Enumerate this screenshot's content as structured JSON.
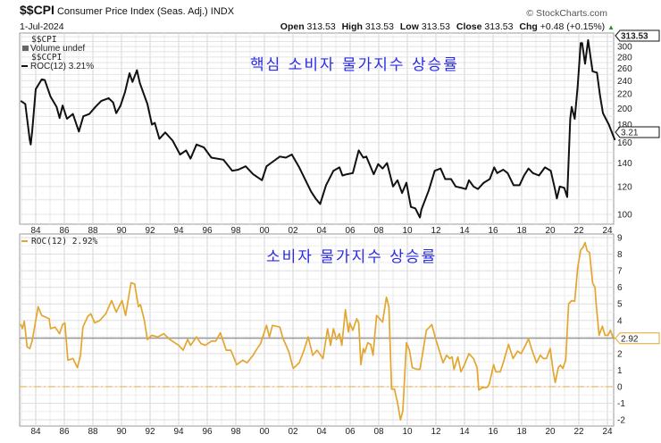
{
  "header": {
    "symbol": "$$CPI",
    "name": "Consumer Price Index (Seas. Adj.)",
    "exchange": "INDX",
    "date": "1-Jul-2024",
    "watermark": "© StockCharts.com",
    "open_label": "Open",
    "open": "313.53",
    "high_label": "High",
    "high": "313.53",
    "low_label": "Low",
    "low": "313.53",
    "close_label": "Close",
    "close": "313.53",
    "chg_label": "Chg",
    "chg": "+0.48 (+0.15%)"
  },
  "chart_data": [
    {
      "type": "line",
      "title": "핵심 소비자 물가지수 상승률",
      "legend": [
        "$$CPI",
        "Volume undef",
        "$$CCPI",
        "ROC(12) 3.21%"
      ],
      "price_tag": "313.53",
      "last_tag": "3.21",
      "scale": "log",
      "ylim": [
        94,
        328
      ],
      "yticks": [
        100,
        120,
        140,
        160,
        180,
        200,
        220,
        240,
        260,
        280,
        300
      ],
      "xticks": [
        "84",
        "86",
        "88",
        "90",
        "92",
        "94",
        "96",
        "98",
        "00",
        "02",
        "04",
        "06",
        "08",
        "10",
        "12",
        "14",
        "16",
        "18",
        "20",
        "22",
        "24"
      ],
      "xlim": [
        1982.9,
        2024.6
      ],
      "color": "#111111",
      "x": [
        1982.96,
        1983.27,
        1983.58,
        1983.65,
        1983.75,
        1984.0,
        1984.42,
        1984.63,
        1985.04,
        1985.46,
        1985.67,
        1985.88,
        1986.19,
        1986.6,
        1987.02,
        1987.33,
        1987.75,
        1988.17,
        1988.58,
        1989.1,
        1989.42,
        1989.63,
        1989.94,
        1990.25,
        1990.56,
        1990.77,
        1991.08,
        1991.29,
        1991.81,
        1992.13,
        1992.33,
        1992.65,
        1993.06,
        1993.58,
        1994.1,
        1994.52,
        1994.83,
        1995.25,
        1995.77,
        1996.29,
        1997.13,
        1997.75,
        1998.17,
        1998.69,
        1999.21,
        1999.83,
        2000.15,
        2000.46,
        2001.08,
        2001.5,
        2001.92,
        2002.44,
        2003.27,
        2003.58,
        2003.9,
        2004.31,
        2004.83,
        2005.25,
        2005.46,
        2005.77,
        2006.19,
        2006.6,
        2006.92,
        2007.13,
        2007.65,
        2007.96,
        2008.27,
        2008.58,
        2009.0,
        2009.31,
        2009.63,
        2009.94,
        2010.25,
        2010.56,
        2010.88,
        2010.98,
        2011.5,
        2011.92,
        2012.33,
        2012.65,
        2013.06,
        2013.38,
        2013.79,
        2014.1,
        2014.31,
        2014.63,
        2014.94,
        2015.35,
        2015.77,
        2016.08,
        2016.29,
        2016.71,
        2017.02,
        2017.44,
        2017.85,
        2018.17,
        2018.48,
        2018.79,
        2019.21,
        2019.63,
        2020.04,
        2020.35,
        2020.46,
        2020.67,
        2020.98,
        2021.19,
        2021.4,
        2021.5,
        2021.71,
        2021.92,
        2022.13,
        2022.23,
        2022.44,
        2022.65,
        2022.96,
        2023.27,
        2023.48,
        2023.69,
        2024.1,
        2024.52
      ],
      "y": [
        210,
        206,
        163,
        158,
        172,
        227,
        242,
        241,
        216,
        202,
        188,
        204,
        187,
        193,
        172,
        190,
        193,
        202,
        210,
        214,
        208,
        194,
        204,
        223,
        252,
        238,
        257,
        236,
        206,
        180,
        182,
        164,
        171,
        162,
        148,
        152,
        144,
        158,
        155,
        145,
        143,
        133,
        134,
        137,
        130,
        125,
        137,
        140,
        146,
        145,
        148,
        136,
        116,
        111,
        107,
        121,
        133,
        136,
        129,
        130,
        131,
        152,
        145,
        146,
        130,
        139,
        135,
        140,
        120,
        125,
        115,
        123,
        105,
        104,
        98,
        103,
        117,
        133,
        135,
        126,
        126,
        120,
        119,
        118,
        125,
        120,
        118,
        123,
        126,
        136,
        131,
        134,
        131,
        121,
        121,
        129,
        135,
        131,
        129,
        136,
        133,
        117,
        111,
        120,
        119,
        112,
        187,
        202,
        187,
        231,
        307,
        307,
        268,
        313,
        255,
        253,
        218,
        194,
        180,
        163
      ]
    },
    {
      "type": "line",
      "title": "소비자 물가지수 상승률",
      "legend": [
        "ROC(12) 2.92%"
      ],
      "last_tag": "2.92",
      "reference_line": 2.92,
      "zero_line": 0,
      "ylim": [
        -2.3,
        9.2
      ],
      "yticks": [
        -2,
        -1,
        0,
        1,
        2,
        4,
        5,
        6,
        7,
        8,
        9
      ],
      "xticks": [
        "84",
        "86",
        "88",
        "90",
        "92",
        "94",
        "96",
        "98",
        "00",
        "02",
        "04",
        "06",
        "08",
        "10",
        "12",
        "14",
        "16",
        "18",
        "20",
        "22",
        "24"
      ],
      "xlim": [
        1982.9,
        2024.6
      ],
      "color": "#e3a62f",
      "x": [
        1982.96,
        1983.06,
        1983.2,
        1983.4,
        1983.58,
        1983.75,
        1984.17,
        1984.42,
        1984.94,
        1985.04,
        1985.35,
        1985.67,
        1985.88,
        1986.04,
        1986.25,
        1986.6,
        1986.92,
        1987.13,
        1987.3,
        1987.65,
        1987.85,
        1988.13,
        1988.48,
        1988.9,
        1989.31,
        1989.63,
        1990.04,
        1990.29,
        1990.67,
        1990.92,
        1991.19,
        1991.33,
        1991.6,
        1991.81,
        1992.13,
        1992.54,
        1992.96,
        1993.38,
        1994.0,
        1994.31,
        1994.63,
        1994.83,
        1995.25,
        1995.56,
        1995.88,
        1996.29,
        1996.6,
        1996.92,
        1997.33,
        1997.65,
        1998.06,
        1998.48,
        1998.79,
        1999.21,
        1999.42,
        1999.73,
        2000.15,
        2000.35,
        2000.56,
        2001.08,
        2001.29,
        2001.71,
        2002.02,
        2002.44,
        2002.75,
        2003.06,
        2003.38,
        2003.69,
        2004.1,
        2004.42,
        2004.63,
        2004.83,
        2005.04,
        2005.25,
        2005.42,
        2005.67,
        2005.88,
        2005.98,
        2006.19,
        2006.46,
        2006.6,
        2006.75,
        2006.92,
        2007.02,
        2007.23,
        2007.44,
        2007.6,
        2007.85,
        2008.06,
        2008.27,
        2008.54,
        2008.71,
        2008.9,
        2009.1,
        2009.31,
        2009.52,
        2009.69,
        2009.94,
        2010.15,
        2010.35,
        2010.67,
        2010.88,
        2011.08,
        2011.33,
        2011.71,
        2011.96,
        2012.23,
        2012.5,
        2012.75,
        2012.96,
        2013.13,
        2013.27,
        2013.54,
        2013.75,
        2014.0,
        2014.31,
        2014.63,
        2014.88,
        2015.0,
        2015.25,
        2015.56,
        2015.73,
        2016.04,
        2016.19,
        2016.5,
        2016.71,
        2017.08,
        2017.4,
        2017.71,
        2017.96,
        2018.21,
        2018.48,
        2018.69,
        2019.04,
        2019.31,
        2019.52,
        2019.73,
        2020.0,
        2020.21,
        2020.35,
        2020.56,
        2020.71,
        2020.88,
        2021.08,
        2021.29,
        2021.5,
        2021.71,
        2021.92,
        2022.13,
        2022.29,
        2022.44,
        2022.58,
        2022.75,
        2022.96,
        2023.13,
        2023.21,
        2023.42,
        2023.65,
        2023.83,
        2024.04,
        2024.21,
        2024.38,
        2024.52
      ],
      "y": [
        3.75,
        3.5,
        3.95,
        2.4,
        2.3,
        2.75,
        4.83,
        4.3,
        4.1,
        3.5,
        3.6,
        3.2,
        3.75,
        3.85,
        1.6,
        1.7,
        1.15,
        1.9,
        3.6,
        4.25,
        4.4,
        3.85,
        4.0,
        4.4,
        5.2,
        4.5,
        5.2,
        4.3,
        6.27,
        6.2,
        4.83,
        4.95,
        4.0,
        2.85,
        3.1,
        3.0,
        3.2,
        2.85,
        2.5,
        2.2,
        2.85,
        2.5,
        3.0,
        2.6,
        2.5,
        2.75,
        2.75,
        3.25,
        2.2,
        2.2,
        1.33,
        1.6,
        1.45,
        1.9,
        2.2,
        2.6,
        3.7,
        3.0,
        3.7,
        3.6,
        2.95,
        2.1,
        1.1,
        1.45,
        2.15,
        3.0,
        1.9,
        2.2,
        1.7,
        3.5,
        2.5,
        3.5,
        2.85,
        3.2,
        2.5,
        4.65,
        3.3,
        3.85,
        3.4,
        4.1,
        3.85,
        1.33,
        2.3,
        2.05,
        2.65,
        2.55,
        1.9,
        4.3,
        4.1,
        3.9,
        5.4,
        4.83,
        -0.15,
        -0.15,
        -0.95,
        -2.0,
        -1.45,
        2.65,
        2.2,
        1.15,
        1.05,
        1.05,
        2.05,
        3.4,
        3.75,
        2.95,
        2.2,
        1.45,
        1.9,
        1.7,
        1.8,
        1.05,
        1.8,
        0.9,
        1.33,
        2.0,
        1.7,
        1.15,
        -0.2,
        -0.05,
        -0.05,
        0.15,
        1.33,
        0.9,
        0.9,
        1.45,
        2.55,
        1.7,
        2.15,
        2.0,
        2.4,
        2.9,
        2.3,
        1.45,
        1.9,
        1.7,
        1.7,
        2.3,
        0.9,
        0.25,
        1.15,
        1.3,
        1.1,
        1.6,
        5.0,
        5.2,
        5.15,
        7.17,
        8.25,
        8.4,
        8.7,
        8.2,
        8.1,
        6.27,
        6.0,
        5.0,
        3.1,
        3.65,
        3.1,
        3.1,
        3.4,
        3.0,
        2.92
      ]
    }
  ]
}
